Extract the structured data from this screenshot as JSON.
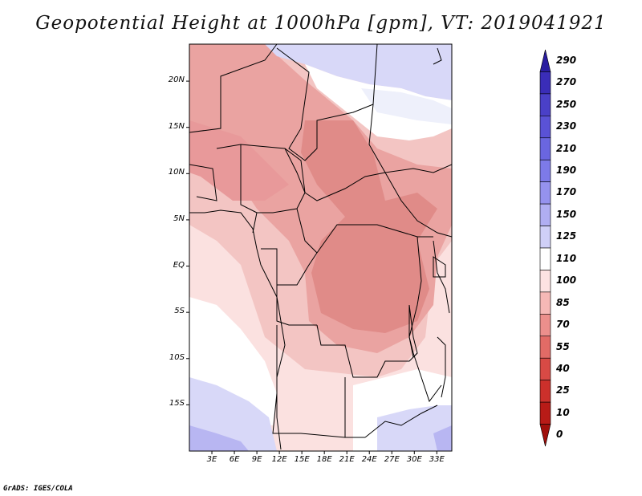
{
  "title": "Geopotential Height at 1000hPa [gpm], VT: 2019041921",
  "credit": "GrADS: IGES/COLA",
  "map": {
    "lat_range": [
      -20,
      24
    ],
    "lon_range": [
      0,
      35
    ],
    "lat_labels": [
      "20N",
      "15N",
      "10N",
      "5N",
      "EQ",
      "5S",
      "10S",
      "15S"
    ],
    "lat_values": [
      20,
      15,
      10,
      5,
      0,
      -5,
      -10,
      -15
    ],
    "lon_labels": [
      "3E",
      "6E",
      "9E",
      "12E",
      "15E",
      "18E",
      "21E",
      "24E",
      "27E",
      "30E",
      "33E"
    ],
    "lon_values": [
      3,
      6,
      9,
      12,
      15,
      18,
      21,
      24,
      27,
      30,
      33
    ]
  },
  "colorbar": {
    "labels": [
      "290",
      "270",
      "250",
      "230",
      "210",
      "190",
      "170",
      "150",
      "125",
      "110",
      "100",
      "85",
      "70",
      "55",
      "40",
      "25",
      "10",
      "0"
    ],
    "colors": [
      "#2a1da0",
      "#3a2db8",
      "#4a40c8",
      "#5a52d6",
      "#6a66e0",
      "#7d7ae8",
      "#9592ee",
      "#b0aef2",
      "#cfcff7",
      "#ffffff",
      "#fde2e2",
      "#f6b8b6",
      "#ec8f8c",
      "#e26b66",
      "#d84a45",
      "#cc302b",
      "#b81b17",
      "#a0100c"
    ]
  },
  "regions": {
    "description_colors": {
      "deep_red": "#e08b88",
      "mid_red": "#eaa3a1",
      "light_red": "#f3c5c3",
      "pale_red": "#fbe1e0",
      "white": "#ffffff",
      "light_blue": "#d8d8f8",
      "blue": "#b8b6f2"
    }
  }
}
